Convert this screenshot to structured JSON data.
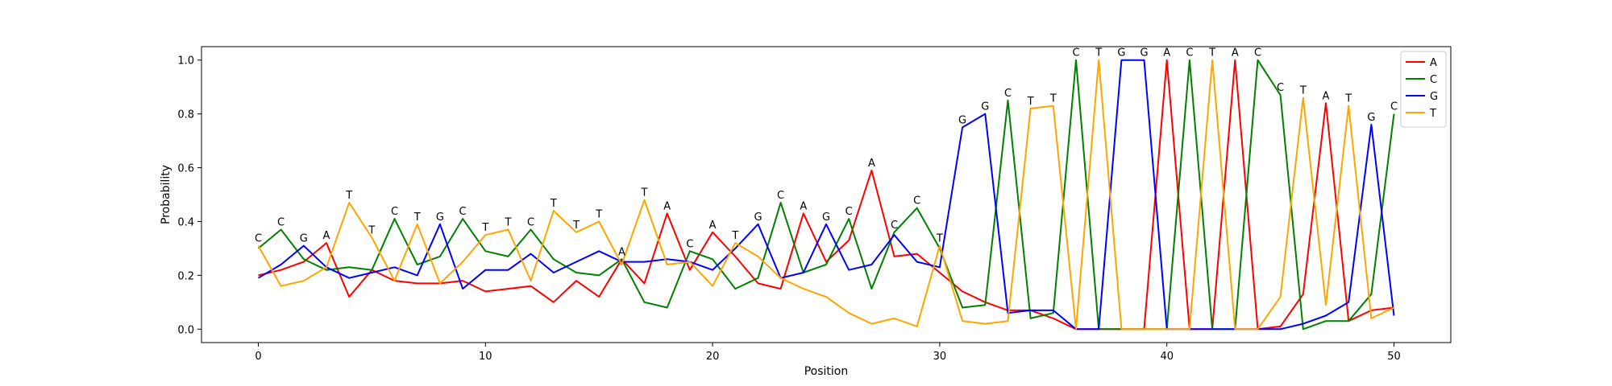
{
  "chart_data": {
    "type": "line",
    "xlabel": "Position",
    "ylabel": "Probability",
    "xlim": [
      -2.5,
      52.5
    ],
    "ylim": [
      -0.05,
      1.05
    ],
    "xticks": [
      0,
      10,
      20,
      30,
      40,
      50
    ],
    "yticks": [
      "0.0",
      "0.2",
      "0.4",
      "0.6",
      "0.8",
      "1.0"
    ],
    "grid": false,
    "legend_position": "top-right",
    "series": [
      {
        "name": "A",
        "color": "#ff0000",
        "values": [
          0.2,
          0.22,
          0.25,
          0.32,
          0.12,
          0.22,
          0.18,
          0.17,
          0.17,
          0.18,
          0.14,
          0.15,
          0.16,
          0.1,
          0.18,
          0.12,
          0.26,
          0.17,
          0.43,
          0.22,
          0.36,
          0.27,
          0.17,
          0.15,
          0.43,
          0.25,
          0.33,
          0.59,
          0.27,
          0.28,
          0.21,
          0.14,
          0.1,
          0.07,
          0.07,
          0.04,
          0.0,
          0.0,
          0.0,
          0.0,
          1.0,
          0.0,
          0.0,
          1.0,
          0.0,
          0.01,
          0.13,
          0.84,
          0.03,
          0.07,
          0.08
        ]
      },
      {
        "name": "C",
        "color": "#008000",
        "values": [
          0.3,
          0.37,
          0.26,
          0.22,
          0.23,
          0.22,
          0.41,
          0.24,
          0.27,
          0.41,
          0.29,
          0.27,
          0.37,
          0.26,
          0.21,
          0.2,
          0.26,
          0.1,
          0.08,
          0.29,
          0.26,
          0.15,
          0.19,
          0.47,
          0.21,
          0.24,
          0.41,
          0.15,
          0.36,
          0.45,
          0.3,
          0.08,
          0.09,
          0.85,
          0.04,
          0.06,
          1.0,
          0.0,
          0.0,
          0.0,
          0.0,
          1.0,
          0.0,
          0.0,
          1.0,
          0.87,
          0.0,
          0.03,
          0.03,
          0.13,
          0.8
        ]
      },
      {
        "name": "G",
        "color": "#0000ff",
        "values": [
          0.19,
          0.24,
          0.31,
          0.23,
          0.19,
          0.21,
          0.23,
          0.2,
          0.39,
          0.15,
          0.22,
          0.22,
          0.28,
          0.21,
          0.25,
          0.29,
          0.25,
          0.25,
          0.26,
          0.25,
          0.22,
          0.3,
          0.39,
          0.19,
          0.21,
          0.39,
          0.22,
          0.24,
          0.35,
          0.25,
          0.23,
          0.75,
          0.8,
          0.06,
          0.07,
          0.07,
          0.0,
          0.0,
          1.0,
          1.0,
          0.0,
          0.0,
          0.0,
          0.0,
          0.0,
          0.0,
          0.02,
          0.05,
          0.1,
          0.76,
          0.05
        ]
      },
      {
        "name": "T",
        "color": "#ffa500",
        "values": [
          0.31,
          0.16,
          0.18,
          0.23,
          0.47,
          0.34,
          0.18,
          0.39,
          0.17,
          0.25,
          0.35,
          0.37,
          0.18,
          0.44,
          0.36,
          0.4,
          0.24,
          0.48,
          0.24,
          0.25,
          0.16,
          0.32,
          0.27,
          0.19,
          0.15,
          0.12,
          0.06,
          0.02,
          0.04,
          0.01,
          0.31,
          0.03,
          0.02,
          0.03,
          0.82,
          0.83,
          0.0,
          1.0,
          0.0,
          0.0,
          0.0,
          0.0,
          1.0,
          0.0,
          0.0,
          0.12,
          0.86,
          0.09,
          0.83,
          0.04,
          0.08
        ]
      }
    ],
    "annotations": [
      "C",
      "C",
      "G",
      "A",
      "T",
      "T",
      "C",
      "T",
      "G",
      "C",
      "T",
      "T",
      "C",
      "T",
      "T",
      "T",
      "A",
      "T",
      "A",
      "C",
      "A",
      "T",
      "G",
      "C",
      "A",
      "G",
      "C",
      "A",
      "C",
      "C",
      "T",
      "G",
      "G",
      "C",
      "T",
      "T",
      "C",
      "T",
      "G",
      "G",
      "A",
      "C",
      "T",
      "A",
      "C",
      "C",
      "T",
      "A",
      "T",
      "G",
      "C"
    ]
  }
}
